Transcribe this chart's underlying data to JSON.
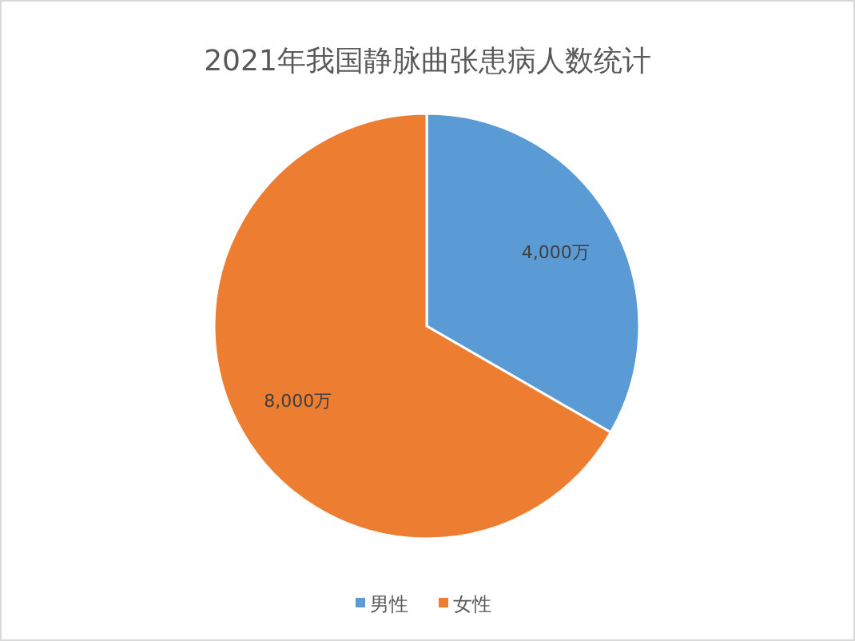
{
  "chart_data": {
    "type": "pie",
    "title": "2021年我国静脉曲张患病人数统计",
    "categories": [
      "男性",
      "女性"
    ],
    "values": [
      4000,
      8000
    ],
    "colors": [
      "#5b9bd5",
      "#ed7d31"
    ],
    "value_labels": [
      "4,000万",
      "8,000万"
    ],
    "legend": "bottom"
  }
}
